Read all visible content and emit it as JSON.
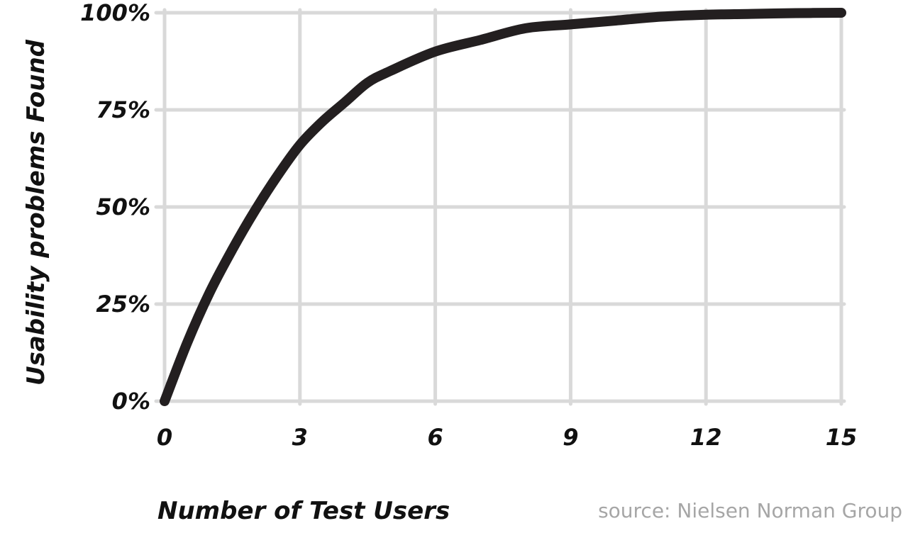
{
  "chart_data": {
    "type": "line",
    "xlabel": "Number of Test Users",
    "ylabel": "Usability problems Found",
    "source": "source: Nielsen Norman Group",
    "xlim": [
      0,
      15
    ],
    "ylim": [
      0,
      100
    ],
    "x_ticks": [
      0,
      3,
      6,
      9,
      12,
      15
    ],
    "x_tick_labels": [
      "0",
      "3",
      "6",
      "9",
      "12",
      "15"
    ],
    "y_ticks": [
      0,
      25,
      50,
      75,
      100
    ],
    "y_tick_labels": [
      "0%",
      "25%",
      "50%",
      "75%",
      "100%"
    ],
    "grid": true,
    "colors": {
      "line": "#231f20",
      "grid": "#d9d9d9",
      "text": "#111111",
      "source": "#a6a6a6"
    },
    "series": [
      {
        "x": [
          0,
          0.5,
          1,
          1.5,
          2,
          2.5,
          3,
          3.5,
          4,
          4.5,
          5,
          6,
          7,
          8,
          9,
          10,
          11,
          12,
          13,
          14,
          15
        ],
        "y": [
          0,
          15,
          28,
          39,
          49,
          58,
          66,
          72,
          77,
          82,
          85,
          90,
          93,
          96,
          97,
          98,
          99,
          99.5,
          99.7,
          99.9,
          100
        ]
      }
    ]
  }
}
